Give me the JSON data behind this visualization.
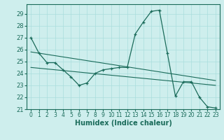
{
  "xlabel": "Humidex (Indice chaleur)",
  "ylabel": "",
  "xlim": [
    -0.5,
    23.5
  ],
  "ylim": [
    21,
    29.8
  ],
  "yticks": [
    21,
    22,
    23,
    24,
    25,
    26,
    27,
    28,
    29
  ],
  "xticks": [
    0,
    1,
    2,
    3,
    4,
    5,
    6,
    7,
    8,
    9,
    10,
    11,
    12,
    13,
    14,
    15,
    16,
    17,
    18,
    19,
    20,
    21,
    22,
    23
  ],
  "bg_color": "#ceeeed",
  "line_color": "#1a6b5a",
  "line1_x": [
    0,
    1,
    2,
    3,
    4,
    5,
    6,
    7,
    8,
    9,
    10,
    11,
    12,
    13,
    14,
    15,
    16,
    17,
    18,
    19,
    20,
    21,
    22,
    23
  ],
  "line1_y": [
    27.0,
    25.7,
    24.9,
    24.9,
    24.3,
    23.7,
    23.0,
    23.2,
    24.0,
    24.3,
    24.4,
    24.5,
    24.5,
    27.3,
    28.3,
    29.2,
    29.3,
    25.7,
    22.1,
    23.3,
    23.3,
    22.0,
    21.2,
    21.1
  ],
  "line2_x": [
    0,
    23
  ],
  "line2_y": [
    25.8,
    23.4
  ],
  "line3_x": [
    0,
    23
  ],
  "line3_y": [
    24.5,
    23.0
  ],
  "grid_color": "#aadddd",
  "tick_labelsize": 5.5,
  "xlabel_fontsize": 7
}
